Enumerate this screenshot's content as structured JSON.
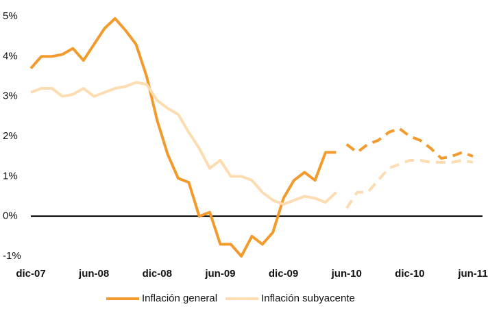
{
  "chart_data": {
    "type": "line",
    "categories": [
      "dic-07",
      null,
      null,
      null,
      null,
      null,
      "jun-08",
      null,
      null,
      null,
      null,
      null,
      "dic-08",
      null,
      null,
      null,
      null,
      null,
      "jun-09",
      null,
      null,
      null,
      null,
      null,
      "dic-09",
      null,
      null,
      null,
      null,
      null,
      "jun-10",
      null,
      null,
      null,
      null,
      null,
      "dic-10",
      null,
      null,
      null,
      null,
      null,
      "jun-11"
    ],
    "series": [
      {
        "name": "Inflación general",
        "color": "#f39a2c",
        "dashed_from": 29,
        "values": [
          3.7,
          4.0,
          4.0,
          4.05,
          4.2,
          3.9,
          4.3,
          4.7,
          4.95,
          4.65,
          4.3,
          3.5,
          2.4,
          1.55,
          0.95,
          0.85,
          0.0,
          0.1,
          -0.7,
          -0.7,
          -1.0,
          -0.5,
          -0.7,
          -0.4,
          0.45,
          0.9,
          1.1,
          0.9,
          1.6,
          1.6,
          1.8,
          1.6,
          1.8,
          1.9,
          2.1,
          2.2,
          2.0,
          1.9,
          1.7,
          1.45,
          1.5,
          1.6,
          1.5
        ]
      },
      {
        "name": "Inflación subyacente",
        "color": "#fcdcb0",
        "dashed_from": 29,
        "values": [
          3.1,
          3.2,
          3.2,
          3.0,
          3.05,
          3.2,
          3.0,
          3.1,
          3.2,
          3.25,
          3.35,
          3.3,
          2.9,
          2.7,
          2.55,
          2.1,
          1.7,
          1.2,
          1.4,
          1.0,
          1.0,
          0.9,
          0.6,
          0.4,
          0.3,
          0.4,
          0.5,
          0.45,
          0.35,
          0.6,
          0.2,
          0.6,
          0.6,
          0.9,
          1.2,
          1.3,
          1.4,
          1.4,
          1.35,
          1.35,
          1.35,
          1.4,
          1.35
        ]
      }
    ],
    "ylim": [
      -1.2,
      5.2
    ],
    "yticks": [
      {
        "value": -1,
        "label": "-1%"
      },
      {
        "value": 0,
        "label": "0%"
      },
      {
        "value": 1,
        "label": "1%"
      },
      {
        "value": 2,
        "label": "2%"
      },
      {
        "value": 3,
        "label": "3%"
      },
      {
        "value": 4,
        "label": "4%"
      },
      {
        "value": 5,
        "label": "5%"
      }
    ],
    "zero_line": true,
    "legend": "bottom"
  }
}
